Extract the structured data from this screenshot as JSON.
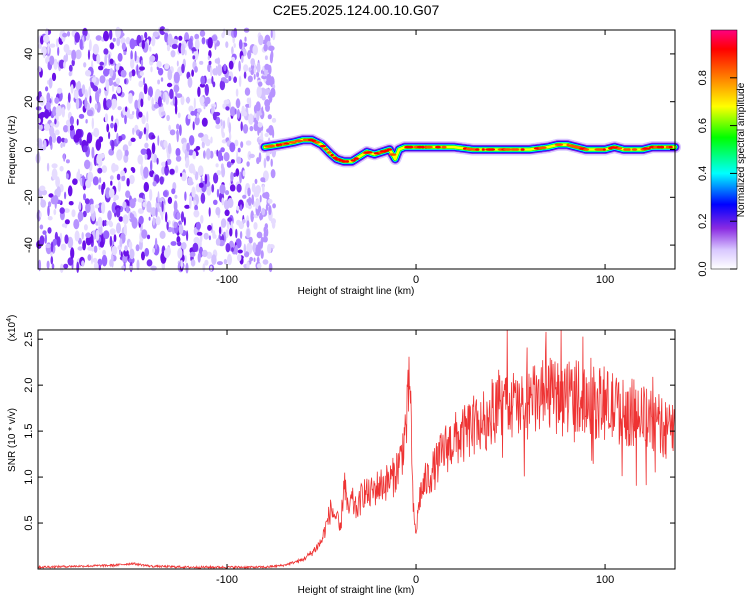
{
  "title": "C2E5.2025.124.00.10.G07",
  "chart_data": [
    {
      "type": "heatmap",
      "xlabel": "Height of straight line (km)",
      "ylabel": "Frequency (Hz)",
      "xlim": [
        -200,
        137
      ],
      "ylim": [
        -50,
        50
      ],
      "xticks": [
        -100,
        0,
        100
      ],
      "xtick_labels": [
        "-100",
        "0",
        "100"
      ],
      "yticks": [
        -40,
        -20,
        0,
        20,
        40
      ],
      "ytick_labels": [
        "-40",
        "-20",
        "0",
        "20",
        "40"
      ],
      "noise_region_x": [
        -200,
        -78
      ],
      "ridge_line": {
        "x": [
          -80,
          -72,
          -65,
          -60,
          -55,
          -50,
          -45,
          -42,
          -38,
          -34,
          -30,
          -26,
          -22,
          -18,
          -14,
          -11,
          -9,
          -6,
          -3,
          0,
          10,
          20,
          30,
          40,
          50,
          60,
          70,
          75,
          80,
          85,
          90,
          95,
          100,
          105,
          110,
          115,
          120,
          125,
          130,
          137
        ],
        "y": [
          1,
          2,
          3,
          4,
          4,
          2,
          -2,
          -4,
          -5,
          -5,
          -3,
          -1,
          -2,
          -1,
          0,
          -4,
          0,
          1,
          1,
          1,
          1,
          1,
          0,
          0,
          0,
          0,
          1,
          2,
          2,
          1,
          0,
          0,
          0,
          1,
          0,
          0,
          0,
          1,
          1,
          1
        ]
      },
      "colorbar": {
        "label": "Normalized spectral amplitude",
        "range": [
          0,
          1
        ],
        "ticks": [
          "0.0",
          "0.2",
          "0.4",
          "0.6",
          "0.8"
        ],
        "colors": [
          "#ffffff",
          "#d9c8ff",
          "#8a2be2",
          "#0000ff",
          "#00ffff",
          "#00ff00",
          "#ffff00",
          "#ff8000",
          "#ff0000",
          "#ff0080"
        ]
      }
    },
    {
      "type": "line",
      "xlabel": "Height of straight line (km)",
      "ylabel": "SNR (10 * v/v)",
      "y_multiplier": "(x10^4)",
      "xlim": [
        -200,
        137
      ],
      "ylim": [
        0,
        2.6
      ],
      "xticks": [
        -100,
        0,
        100
      ],
      "xtick_labels": [
        "-100",
        "0",
        "100"
      ],
      "yticks": [
        0.5,
        1.0,
        1.5,
        2.0,
        2.5
      ],
      "ytick_labels": [
        "0.5",
        "1.0",
        "1.5",
        "2.0",
        "2.5"
      ],
      "color": "#ee3333",
      "series": [
        {
          "x": [
            -200,
            -180,
            -160,
            -150,
            -140,
            -120,
            -100,
            -80,
            -70,
            -60,
            -55,
            -50,
            -45,
            -42,
            -40,
            -38,
            -36,
            -34,
            -32,
            -30,
            -28,
            -25,
            -20,
            -15,
            -12,
            -10,
            -8,
            -5,
            -3,
            -2,
            -1,
            0,
            2,
            5,
            10,
            15,
            20,
            25,
            30,
            35,
            40,
            45,
            50,
            55,
            60,
            65,
            70,
            75,
            80,
            85,
            90,
            95,
            100,
            105,
            110,
            115,
            120,
            125,
            130,
            137
          ],
          "y": [
            0.02,
            0.03,
            0.04,
            0.06,
            0.03,
            0.02,
            0.02,
            0.02,
            0.04,
            0.1,
            0.18,
            0.3,
            0.65,
            0.55,
            0.4,
            1.0,
            0.6,
            0.75,
            0.65,
            0.7,
            0.85,
            0.8,
            0.9,
            0.95,
            1.0,
            1.1,
            1.2,
            1.6,
            2.1,
            0.9,
            0.5,
            0.4,
            0.8,
            0.95,
            1.1,
            1.3,
            1.4,
            1.45,
            1.55,
            1.6,
            1.7,
            1.75,
            1.8,
            1.75,
            1.8,
            1.85,
            1.9,
            1.85,
            1.9,
            1.9,
            1.85,
            1.8,
            1.8,
            1.75,
            1.7,
            1.7,
            1.65,
            1.6,
            1.55,
            1.5
          ]
        }
      ]
    }
  ]
}
